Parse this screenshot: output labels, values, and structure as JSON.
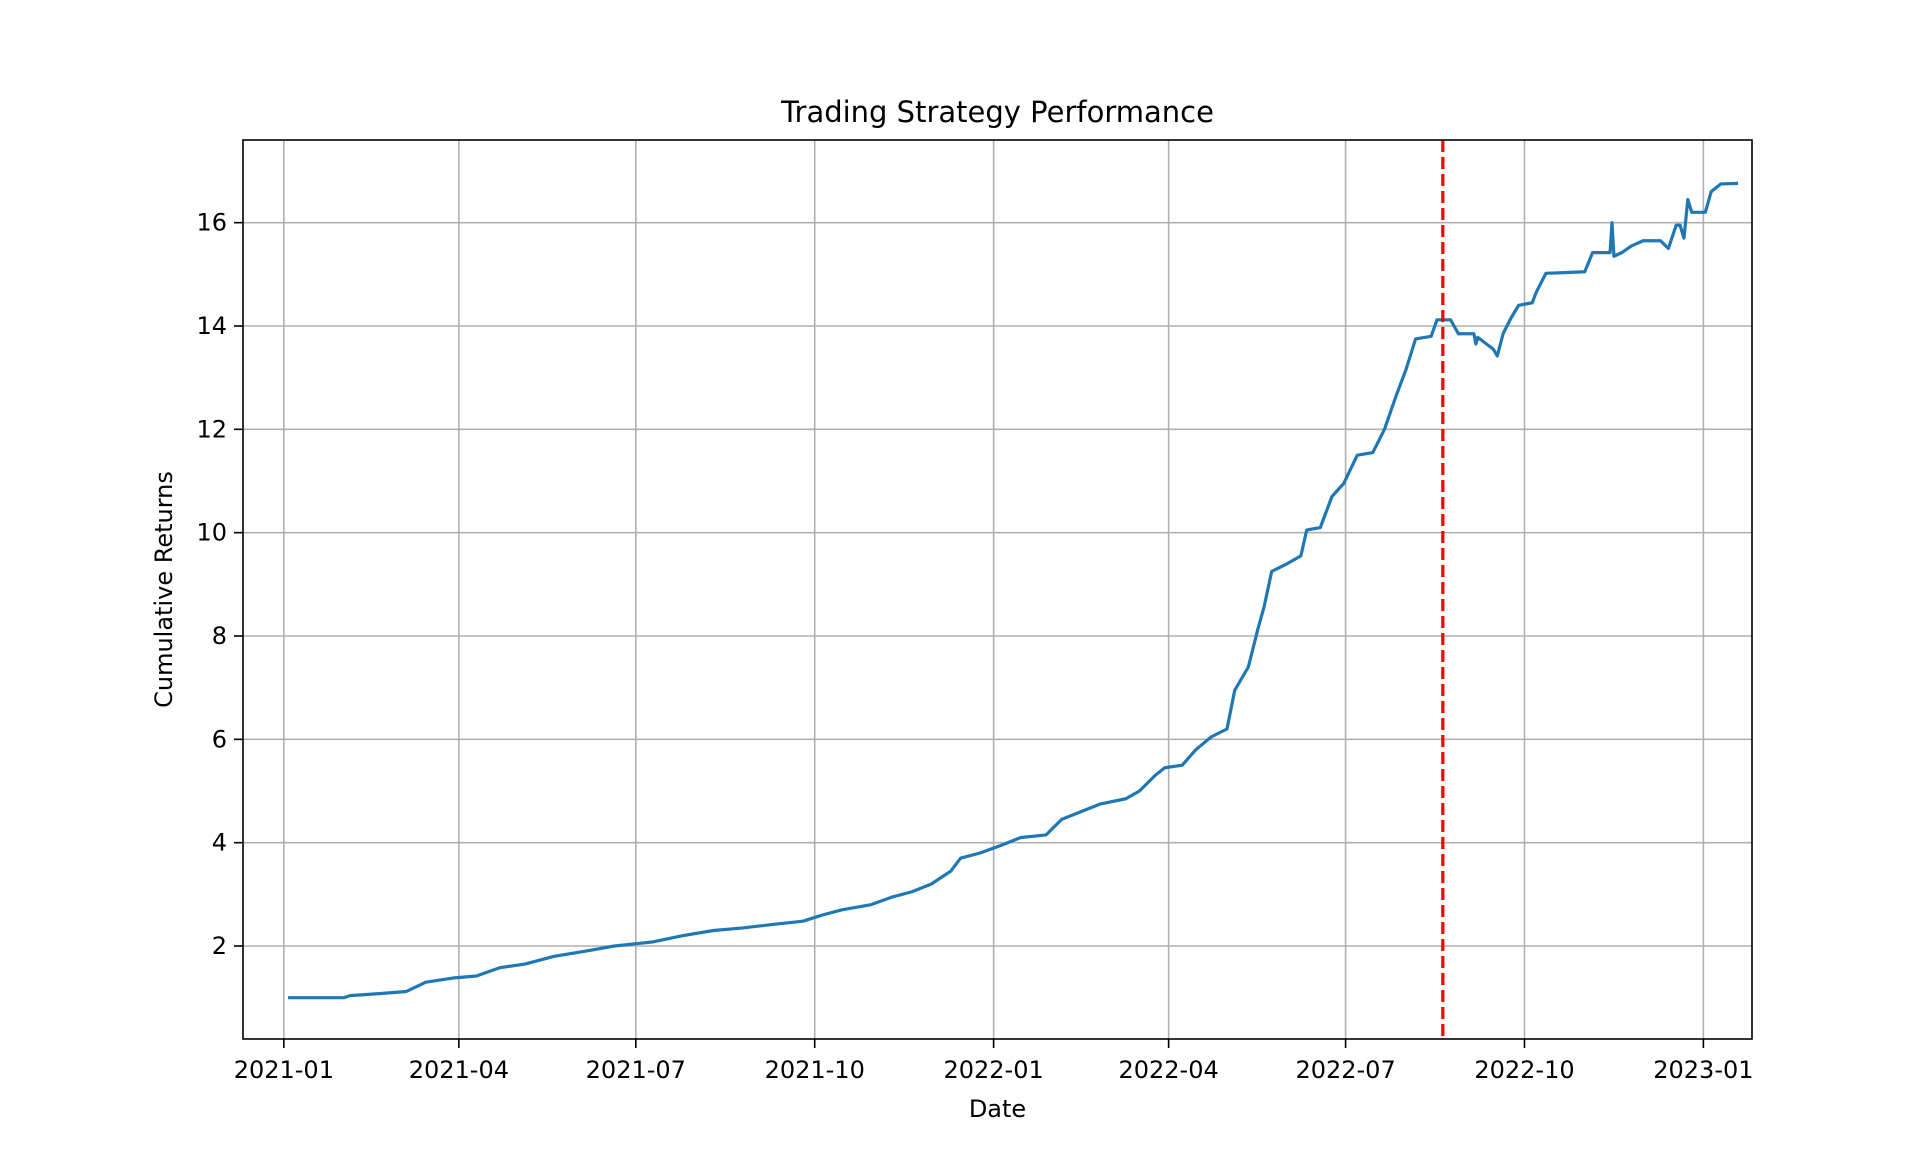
{
  "chart_data": {
    "type": "line",
    "title": "Trading Strategy Performance",
    "xlabel": "Date",
    "ylabel": "Cumulative Returns",
    "grid": true,
    "x_ticks": [
      "2021-01",
      "2021-04",
      "2021-07",
      "2021-10",
      "2022-01",
      "2022-04",
      "2022-07",
      "2022-10",
      "2023-01"
    ],
    "y_ticks": [
      2,
      4,
      6,
      8,
      10,
      12,
      14,
      16
    ],
    "xlim": [
      "2020-12-11",
      "2023-01-26"
    ],
    "ylim": [
      0.2,
      17.6
    ],
    "series": [
      {
        "name": "",
        "color": "#1f77b4",
        "points": [
          [
            "2021-01-04",
            1.0
          ],
          [
            "2021-02-01",
            1.0
          ],
          [
            "2021-02-04",
            1.04
          ],
          [
            "2021-02-20",
            1.08
          ],
          [
            "2021-03-05",
            1.12
          ],
          [
            "2021-03-15",
            1.3
          ],
          [
            "2021-03-29",
            1.38
          ],
          [
            "2021-04-10",
            1.42
          ],
          [
            "2021-04-22",
            1.58
          ],
          [
            "2021-05-05",
            1.65
          ],
          [
            "2021-05-20",
            1.8
          ],
          [
            "2021-06-05",
            1.9
          ],
          [
            "2021-06-20",
            2.0
          ],
          [
            "2021-07-10",
            2.08
          ],
          [
            "2021-07-25",
            2.2
          ],
          [
            "2021-08-10",
            2.3
          ],
          [
            "2021-08-25",
            2.35
          ],
          [
            "2021-09-10",
            2.42
          ],
          [
            "2021-09-25",
            2.48
          ],
          [
            "2021-10-05",
            2.6
          ],
          [
            "2021-10-15",
            2.7
          ],
          [
            "2021-10-30",
            2.8
          ],
          [
            "2021-11-10",
            2.95
          ],
          [
            "2021-11-20",
            3.05
          ],
          [
            "2021-11-30",
            3.2
          ],
          [
            "2021-12-10",
            3.45
          ],
          [
            "2021-12-15",
            3.7
          ],
          [
            "2021-12-25",
            3.8
          ],
          [
            "2022-01-05",
            3.95
          ],
          [
            "2022-01-15",
            4.1
          ],
          [
            "2022-01-28",
            4.15
          ],
          [
            "2022-02-05",
            4.45
          ],
          [
            "2022-02-15",
            4.6
          ],
          [
            "2022-02-25",
            4.75
          ],
          [
            "2022-03-10",
            4.85
          ],
          [
            "2022-03-17",
            5.0
          ],
          [
            "2022-03-25",
            5.3
          ],
          [
            "2022-03-30",
            5.45
          ],
          [
            "2022-04-08",
            5.5
          ],
          [
            "2022-04-15",
            5.8
          ],
          [
            "2022-04-23",
            6.05
          ],
          [
            "2022-05-01",
            6.2
          ],
          [
            "2022-05-05",
            6.95
          ],
          [
            "2022-05-12",
            7.4
          ],
          [
            "2022-05-17",
            8.15
          ],
          [
            "2022-05-20",
            8.55
          ],
          [
            "2022-05-24",
            9.25
          ],
          [
            "2022-06-01",
            9.4
          ],
          [
            "2022-06-08",
            9.55
          ],
          [
            "2022-06-11",
            10.05
          ],
          [
            "2022-06-18",
            10.1
          ],
          [
            "2022-06-24",
            10.7
          ],
          [
            "2022-06-30",
            10.95
          ],
          [
            "2022-07-07",
            11.5
          ],
          [
            "2022-07-15",
            11.55
          ],
          [
            "2022-07-21",
            12.0
          ],
          [
            "2022-07-27",
            12.65
          ],
          [
            "2022-08-01",
            13.15
          ],
          [
            "2022-08-06",
            13.75
          ],
          [
            "2022-08-14",
            13.8
          ],
          [
            "2022-08-17",
            14.12
          ],
          [
            "2022-08-24",
            14.12
          ],
          [
            "2022-08-28",
            13.85
          ],
          [
            "2022-09-05",
            13.85
          ],
          [
            "2022-09-06",
            13.65
          ],
          [
            "2022-09-07",
            13.78
          ],
          [
            "2022-09-15",
            13.55
          ],
          [
            "2022-09-17",
            13.42
          ],
          [
            "2022-09-20",
            13.85
          ],
          [
            "2022-09-24",
            14.15
          ],
          [
            "2022-09-28",
            14.4
          ],
          [
            "2022-10-05",
            14.45
          ],
          [
            "2022-10-07",
            14.65
          ],
          [
            "2022-10-12",
            15.02
          ],
          [
            "2022-10-20",
            15.03
          ],
          [
            "2022-11-01",
            15.05
          ],
          [
            "2022-11-05",
            15.42
          ],
          [
            "2022-11-14",
            15.42
          ],
          [
            "2022-11-15",
            16.0
          ],
          [
            "2022-11-16",
            15.35
          ],
          [
            "2022-11-20",
            15.42
          ],
          [
            "2022-11-25",
            15.55
          ],
          [
            "2022-12-01",
            15.65
          ],
          [
            "2022-12-10",
            15.65
          ],
          [
            "2022-12-14",
            15.5
          ],
          [
            "2022-12-18",
            15.95
          ],
          [
            "2022-12-20",
            15.95
          ],
          [
            "2022-12-22",
            15.7
          ],
          [
            "2022-12-24",
            16.45
          ],
          [
            "2022-12-26",
            16.2
          ],
          [
            "2023-01-02",
            16.2
          ],
          [
            "2023-01-05",
            16.6
          ],
          [
            "2023-01-10",
            16.75
          ],
          [
            "2023-01-18",
            16.76
          ]
        ]
      }
    ],
    "vertical_line": {
      "x": "2022-08-20",
      "color": "#ff0000",
      "style": "dashed"
    }
  }
}
